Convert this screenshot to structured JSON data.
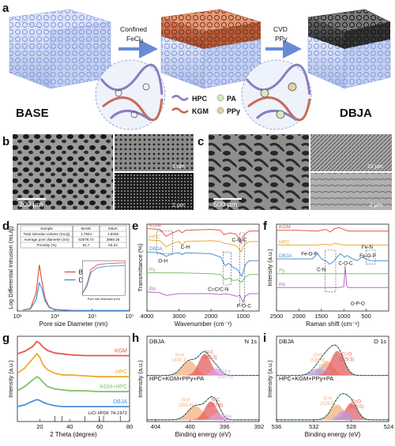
{
  "panel_labels": {
    "a": "a",
    "b": "b",
    "c": "c",
    "d": "d",
    "e": "e",
    "f": "f",
    "g": "g",
    "h": "h",
    "i": "i"
  },
  "schematic": {
    "base_label": "BASE",
    "dbja_label": "DBJA",
    "step1_line1": "Confined",
    "step1_line2": "FeCl",
    "step1_sub": "3",
    "step2_line1": "CVD",
    "step2_line2": "PPy",
    "pa_label": "PA",
    "legend": [
      {
        "label": "HPC",
        "color": "#8a7dc0"
      },
      {
        "label": "KGM",
        "color": "#c96a55"
      },
      {
        "label": "PA",
        "color": "#d8e6c0"
      },
      {
        "label": "PPy",
        "color": "#e8cfa0"
      }
    ]
  },
  "sem": {
    "b_main_scale": "200 μm",
    "b_top_scale": "1 μm",
    "b_bot_scale": "1 μm",
    "c_main_scale": "500 μm",
    "c_top_scale": "10 μm",
    "c_bot_scale": "2 μm"
  },
  "chart_data": [
    {
      "panel": "d",
      "type": "line",
      "xlabel": "Pore size Diameter (nm)",
      "ylabel": "Log Differential Intrusion (mL/g)",
      "x_scale": "log",
      "xlim": [
        10,
        10000000
      ],
      "ylim": [
        0,
        1
      ],
      "x_ticks": [
        "10¹",
        "10³",
        "10⁵",
        "10⁷"
      ],
      "legend_position": "center-right",
      "series": [
        {
          "name": "BASE",
          "color": "#e0584a",
          "x": [
            20,
            50,
            100,
            150,
            200,
            300,
            500,
            1000,
            3000,
            10000,
            30000,
            100000,
            1000000,
            10000000
          ],
          "values": [
            0.02,
            0.05,
            0.35,
            0.9,
            0.6,
            0.25,
            0.08,
            0.03,
            0.02,
            0.01,
            0.01,
            0.01,
            0.01,
            0.01
          ]
        },
        {
          "name": "DBJA",
          "color": "#4a90d9",
          "x": [
            20,
            50,
            100,
            150,
            200,
            300,
            500,
            1000,
            3000,
            10000,
            30000,
            100000,
            1000000,
            10000000
          ],
          "values": [
            0.02,
            0.04,
            0.22,
            0.55,
            0.45,
            0.2,
            0.07,
            0.03,
            0.02,
            0.01,
            0.01,
            0.01,
            0.01,
            0.01
          ]
        }
      ],
      "table": {
        "headers": [
          "Sample",
          "BASE",
          "DBJA"
        ],
        "rows": [
          [
            "Total intrusion volume (mL/g)",
            "1.7934",
            "1.5048"
          ],
          [
            "Average pore diameter (nm)",
            "62878.73",
            "3958.35"
          ],
          [
            "Porosity (%)",
            "91.7",
            "63.24"
          ]
        ]
      },
      "inset": {
        "xlabel": "Pore size Diameter (nm)"
      }
    },
    {
      "panel": "e",
      "type": "line",
      "xlabel": "Wavenumber (cm⁻¹)",
      "ylabel": "Transmittance (%)",
      "xlim": [
        4000,
        500
      ],
      "x_ticks": [
        4000,
        3000,
        2000,
        1000
      ],
      "series": [
        {
          "name": "KGM",
          "color": "#e0584a",
          "x": [
            4000,
            3600,
            3400,
            3200,
            3000,
            2900,
            2800,
            2000,
            1700,
            1600,
            1400,
            1200,
            1060,
            1000,
            900,
            800,
            500
          ],
          "values": [
            0.95,
            0.94,
            0.86,
            0.9,
            0.93,
            0.9,
            0.93,
            0.94,
            0.93,
            0.88,
            0.9,
            0.88,
            0.78,
            0.86,
            0.9,
            0.92,
            0.92
          ]
        },
        {
          "name": "HPC",
          "color": "#f0a830",
          "x": [
            4000,
            3600,
            3400,
            3200,
            3000,
            2900,
            2800,
            2000,
            1700,
            1600,
            1400,
            1200,
            1060,
            1000,
            900,
            800,
            500
          ],
          "values": [
            0.82,
            0.81,
            0.74,
            0.78,
            0.8,
            0.76,
            0.8,
            0.81,
            0.8,
            0.78,
            0.77,
            0.75,
            0.68,
            0.74,
            0.78,
            0.8,
            0.8
          ]
        },
        {
          "name": "DBJA",
          "color": "#4a90d9",
          "x": [
            4000,
            3600,
            3400,
            3200,
            3000,
            2900,
            2800,
            2000,
            1700,
            1560,
            1450,
            1300,
            1180,
            1040,
            960,
            900,
            800,
            500
          ],
          "values": [
            0.68,
            0.67,
            0.63,
            0.66,
            0.67,
            0.65,
            0.67,
            0.66,
            0.62,
            0.52,
            0.55,
            0.5,
            0.48,
            0.4,
            0.5,
            0.55,
            0.58,
            0.58
          ]
        },
        {
          "name": "Py",
          "color": "#7cc464",
          "x": [
            4000,
            3000,
            2000,
            1700,
            1550,
            1450,
            1300,
            1170,
            1040,
            960,
            900,
            800,
            500
          ],
          "values": [
            0.44,
            0.44,
            0.43,
            0.42,
            0.36,
            0.38,
            0.35,
            0.36,
            0.33,
            0.38,
            0.4,
            0.42,
            0.42
          ]
        },
        {
          "name": "PA",
          "color": "#b469c8",
          "x": [
            4000,
            3600,
            3400,
            3200,
            3000,
            2400,
            2000,
            1700,
            1600,
            1400,
            1200,
            1100,
            1000,
            950,
            900,
            800,
            500
          ],
          "values": [
            0.22,
            0.21,
            0.18,
            0.19,
            0.2,
            0.2,
            0.2,
            0.19,
            0.2,
            0.19,
            0.17,
            0.18,
            0.1,
            0.16,
            0.18,
            0.2,
            0.2
          ]
        }
      ],
      "annotations": [
        "C-H",
        "O-H",
        "C-O-C",
        "C=C/C-N",
        "P-O-C"
      ]
    },
    {
      "panel": "f",
      "type": "line",
      "xlabel": "Raman shift (cm⁻¹)",
      "ylabel": "Intensity (a.u.)",
      "xlim": [
        2500,
        0
      ],
      "x_ticks": [
        2500,
        2000,
        1500,
        1000,
        500
      ],
      "series": [
        {
          "name": "KGM",
          "color": "#e0584a",
          "x": [
            2500,
            2000,
            1600,
            1400,
            1300,
            1200,
            1100,
            1000,
            900,
            800,
            500,
            0
          ],
          "values": [
            0.93,
            0.93,
            0.92,
            0.94,
            0.91,
            0.95,
            0.96,
            0.94,
            0.92,
            0.92,
            0.92,
            0.92
          ]
        },
        {
          "name": "HPC",
          "color": "#f0a830",
          "x": [
            2500,
            2000,
            1600,
            1400,
            1300,
            1200,
            1100,
            1000,
            900,
            800,
            500,
            0
          ],
          "values": [
            0.76,
            0.76,
            0.76,
            0.77,
            0.76,
            0.78,
            0.77,
            0.76,
            0.76,
            0.76,
            0.76,
            0.76
          ]
        },
        {
          "name": "DBJA",
          "color": "#4a90d9",
          "x": [
            2500,
            2000,
            1700,
            1580,
            1500,
            1380,
            1320,
            1250,
            1080,
            980,
            930,
            800,
            700,
            600,
            500,
            400,
            0
          ],
          "values": [
            0.6,
            0.6,
            0.6,
            0.66,
            0.6,
            0.57,
            0.54,
            0.56,
            0.66,
            0.62,
            0.64,
            0.6,
            0.58,
            0.62,
            0.6,
            0.58,
            0.58
          ]
        },
        {
          "name": "Py",
          "color": "#7cc464",
          "x": [
            2500,
            2000,
            1600,
            1400,
            1200,
            1000,
            800,
            500,
            0
          ],
          "values": [
            0.43,
            0.43,
            0.43,
            0.43,
            0.43,
            0.43,
            0.43,
            0.43,
            0.43
          ]
        },
        {
          "name": "PA",
          "color": "#b469c8",
          "x": [
            2500,
            2000,
            1600,
            1300,
            1100,
            1000,
            970,
            940,
            900,
            600,
            0
          ],
          "values": [
            0.27,
            0.27,
            0.27,
            0.27,
            0.27,
            0.28,
            0.52,
            0.3,
            0.27,
            0.27,
            0.27
          ]
        }
      ],
      "annotations": [
        "Fe-O-P",
        "C-N",
        "C-O-C",
        "Fe-N",
        "Fe-O-P",
        "O-P-O"
      ]
    },
    {
      "panel": "g",
      "type": "line",
      "xlabel": "2 Theta (degree)",
      "ylabel": "Intensity (a.u.)",
      "xlim": [
        5,
        80
      ],
      "x_ticks": [
        20,
        40,
        60,
        80
      ],
      "series": [
        {
          "name": "KGM",
          "color": "#e0584a",
          "x": [
            5,
            10,
            15,
            18,
            20,
            22,
            25,
            30,
            35,
            40,
            50,
            60,
            70,
            80
          ],
          "values": [
            0.82,
            0.85,
            0.9,
            0.96,
            0.94,
            0.9,
            0.86,
            0.83,
            0.82,
            0.81,
            0.8,
            0.8,
            0.8,
            0.8
          ]
        },
        {
          "name": "HPC",
          "color": "#f0a830",
          "x": [
            5,
            10,
            15,
            18,
            20,
            22,
            25,
            30,
            35,
            40,
            50,
            60,
            70,
            80
          ],
          "values": [
            0.6,
            0.66,
            0.76,
            0.82,
            0.78,
            0.7,
            0.64,
            0.6,
            0.58,
            0.58,
            0.57,
            0.56,
            0.56,
            0.56
          ]
        },
        {
          "name": "KGM+HPC",
          "color": "#7cc464",
          "x": [
            5,
            10,
            15,
            18,
            20,
            22,
            25,
            30,
            35,
            40,
            50,
            60,
            70,
            80
          ],
          "values": [
            0.4,
            0.45,
            0.52,
            0.56,
            0.54,
            0.5,
            0.45,
            0.42,
            0.41,
            0.4,
            0.4,
            0.39,
            0.39,
            0.39
          ]
        },
        {
          "name": "DBJA",
          "color": "#4a90d9",
          "x": [
            5,
            10,
            15,
            18,
            20,
            22,
            25,
            30,
            35,
            40,
            50,
            60,
            70,
            80
          ],
          "values": [
            0.22,
            0.24,
            0.28,
            0.3,
            0.29,
            0.27,
            0.25,
            0.23,
            0.22,
            0.22,
            0.22,
            0.22,
            0.22,
            0.22
          ]
        }
      ],
      "ref_label": "LiCl #PDF 74-1972",
      "ref_ticks": [
        30.1,
        34.9,
        50.2,
        59.7,
        62.6,
        73.8
      ]
    },
    {
      "panel": "h",
      "type": "line",
      "title": "N 1s",
      "xlabel": "Binding energy (eV)",
      "ylabel": "Intensity (a.u.)",
      "xlim": [
        405,
        392
      ],
      "x_ticks": [
        404,
        400,
        396,
        392
      ],
      "top_label": "DBJA",
      "bottom_label": "HPC+KGM+PPy+PA",
      "peaks_top": [
        {
          "name": "N-H",
          "center": 400.1,
          "height": 0.5,
          "width": 1.2,
          "color": "#f5b080"
        },
        {
          "name": "N-C",
          "center": 398.3,
          "height": 0.75,
          "width": 1.0,
          "color": "#e55d5d"
        },
        {
          "name": "N-Fe",
          "center": 397.0,
          "height": 0.25,
          "width": 0.8,
          "color": "#d9a0e0"
        }
      ],
      "peaks_bottom": [
        {
          "name": "N-H",
          "center": 399.4,
          "height": 0.45,
          "width": 1.2,
          "color": "#f5b080"
        },
        {
          "name": "N-C",
          "center": 397.6,
          "height": 0.6,
          "width": 1.0,
          "color": "#e55d5d"
        },
        {
          "name": "N-Fe",
          "center": 396.9,
          "height": 0.22,
          "width": 0.8,
          "color": "#d9a0e0"
        }
      ],
      "labels_top": [
        {
          "text": "N-H",
          "value": "(400.1)"
        },
        {
          "text": "N-C",
          "value": "(398.3)"
        },
        {
          "text": "N-Fe",
          "value": "(397.0)"
        }
      ],
      "labels_bottom": [
        {
          "text": "N-H",
          "value": "(399.4)"
        },
        {
          "text": "N-C",
          "value": "(397.6)"
        },
        {
          "text": "N-Fe",
          "value": "(396.9)"
        }
      ]
    },
    {
      "panel": "i",
      "type": "line",
      "title": "O 1s",
      "xlabel": "Binding energy (eV)",
      "ylabel": "Intensity (a.u.)",
      "xlim": [
        536,
        524
      ],
      "x_ticks": [
        536,
        532,
        528,
        524
      ],
      "top_label": "DBJA",
      "bottom_label": "HPC+KGM+PPy+PA",
      "peaks_top": [
        {
          "name": "O-H",
          "center": 530.6,
          "height": 0.5,
          "width": 1.0,
          "color": "#f5b080"
        },
        {
          "name": "C-O",
          "center": 531.5,
          "height": 0.25,
          "width": 1.0,
          "color": "#b8a0e0"
        },
        {
          "name": "C=O",
          "center": 529.5,
          "height": 0.85,
          "width": 1.0,
          "color": "#e55d5d"
        }
      ],
      "peaks_bottom": [
        {
          "name": "O-H",
          "center": 529.5,
          "height": 0.5,
          "width": 1.0,
          "color": "#f5b080"
        },
        {
          "name": "C=O",
          "center": 528.0,
          "height": 0.55,
          "width": 0.9,
          "color": "#e55d5d"
        },
        {
          "name": "C-O",
          "center": 528.9,
          "height": 0.3,
          "width": 0.8,
          "color": "#b8a0e0"
        }
      ],
      "labels_top": [
        {
          "text": "O-H",
          "value": "(530.6)"
        },
        {
          "text": "C-O",
          "value": "(531.5)"
        },
        {
          "text": "C=O",
          "value": "(529.5)"
        }
      ],
      "labels_bottom": [
        {
          "text": "O-H",
          "value": "(529.5)"
        },
        {
          "text": "C=O",
          "value": "(528.0)"
        },
        {
          "text": "C-O",
          "value": "(528.9)"
        }
      ]
    }
  ]
}
